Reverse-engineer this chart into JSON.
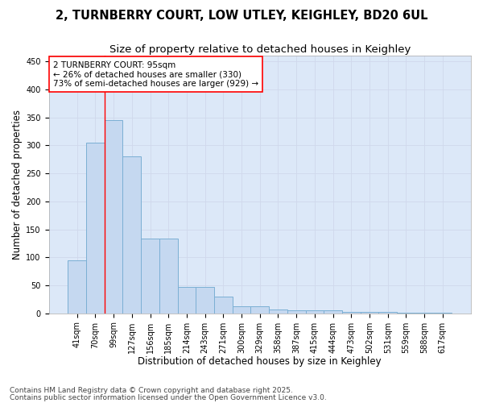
{
  "title_line1": "2, TURNBERRY COURT, LOW UTLEY, KEIGHLEY, BD20 6UL",
  "title_line2": "Size of property relative to detached houses in Keighley",
  "xlabel": "Distribution of detached houses by size in Keighley",
  "ylabel": "Number of detached properties",
  "categories": [
    "41sqm",
    "70sqm",
    "99sqm",
    "127sqm",
    "156sqm",
    "185sqm",
    "214sqm",
    "243sqm",
    "271sqm",
    "300sqm",
    "329sqm",
    "358sqm",
    "387sqm",
    "415sqm",
    "444sqm",
    "473sqm",
    "502sqm",
    "531sqm",
    "559sqm",
    "588sqm",
    "617sqm"
  ],
  "values": [
    95,
    305,
    345,
    280,
    133,
    133,
    47,
    47,
    30,
    12,
    12,
    7,
    6,
    5,
    5,
    3,
    2,
    2,
    1,
    1,
    1
  ],
  "bar_color": "#c5d8f0",
  "bar_edge_color": "#7bafd4",
  "vline_color": "red",
  "vline_x": 2,
  "annotation_text": "2 TURNBERRY COURT: 95sqm\n← 26% of detached houses are smaller (330)\n73% of semi-detached houses are larger (929) →",
  "annotation_box_facecolor": "white",
  "annotation_box_edgecolor": "red",
  "ylim": [
    0,
    460
  ],
  "yticks": [
    0,
    50,
    100,
    150,
    200,
    250,
    300,
    350,
    400,
    450
  ],
  "grid_color": "#d0d8ec",
  "background_color": "#dce8f8",
  "footer_line1": "Contains HM Land Registry data © Crown copyright and database right 2025.",
  "footer_line2": "Contains public sector information licensed under the Open Government Licence v3.0.",
  "title_fontsize": 10.5,
  "subtitle_fontsize": 9.5,
  "axis_label_fontsize": 8.5,
  "tick_fontsize": 7,
  "annotation_fontsize": 7.5,
  "footer_fontsize": 6.5
}
